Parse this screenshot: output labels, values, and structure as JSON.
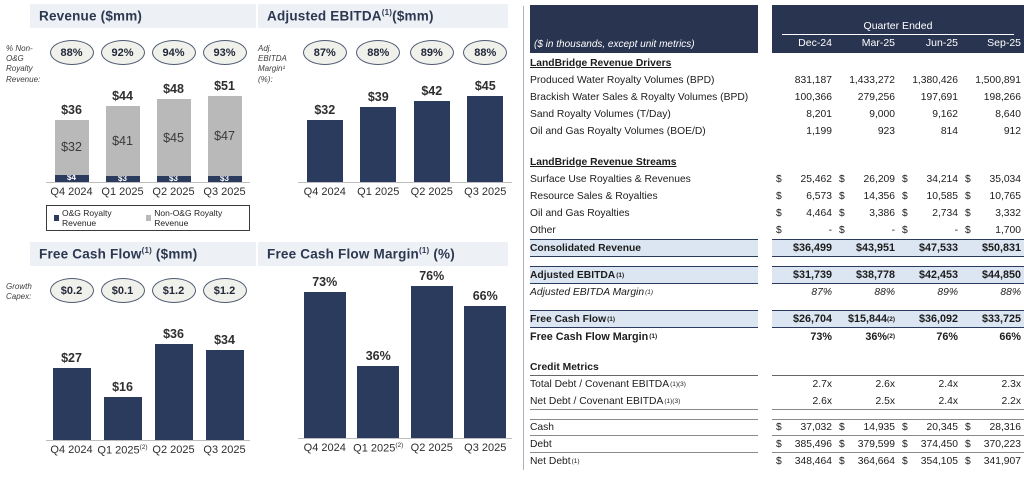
{
  "colors": {
    "navy": "#2b3b5e",
    "header_navy": "#293450",
    "bar_gray": "#b9b9b9",
    "highlight_row": "#dce6f2",
    "title_bar_bg": "#edf1f6",
    "oval_fill": "#f1f1ec"
  },
  "chart_data": [
    {
      "type": "bar",
      "stacked": true,
      "title_pre": "Revenue ",
      "title_sup": "",
      "title_post": "($mm)",
      "side_label_lines": [
        "% Non-O&G",
        "Royalty",
        "Revenue:"
      ],
      "annotation_name": "% Non-O&G Royalty Revenue",
      "annotations": [
        "88%",
        "92%",
        "94%",
        "93%"
      ],
      "categories": [
        "Q4 2024",
        "Q1 2025",
        "Q2 2025",
        "Q3 2025"
      ],
      "category_sups": [
        "",
        "",
        "",
        ""
      ],
      "series": [
        {
          "name": "O&G Royalty Revenue",
          "values": [
            4,
            3,
            3,
            3
          ],
          "labels": [
            "$4",
            "$3",
            "$3",
            "$3"
          ],
          "color": "#2b3b5e",
          "label_color": "#ffffff"
        },
        {
          "name": "Non-O&G Royalty Revenue",
          "values": [
            32,
            41,
            45,
            47
          ],
          "labels": [
            "$32",
            "$41",
            "$45",
            "$47"
          ],
          "color": "#b9b9b9",
          "label_color": "#3a3a3a"
        }
      ],
      "totals": [
        36,
        44,
        48,
        51
      ],
      "total_labels": [
        "$36",
        "$44",
        "$48",
        "$51"
      ],
      "legend": [
        {
          "label": "O&G Royalty Revenue",
          "color": "#2b3b5e"
        },
        {
          "label": "Non-O&G Royalty Revenue",
          "color": "#b9b9b9"
        }
      ]
    },
    {
      "type": "bar",
      "stacked": false,
      "title_pre": "Adjusted EBITDA",
      "title_sup": "(1)",
      "title_post": "($mm)",
      "side_label_lines": [
        "Adj.",
        "EBITDA",
        "Margin¹",
        "(%):"
      ],
      "annotation_name": "Adj. EBITDA Margin (%)",
      "annotations": [
        "87%",
        "88%",
        "89%",
        "88%"
      ],
      "categories": [
        "Q4 2024",
        "Q1 2025",
        "Q2 2025",
        "Q3 2025"
      ],
      "category_sups": [
        "",
        "",
        "",
        ""
      ],
      "values": [
        32,
        39,
        42,
        45
      ],
      "value_labels": [
        "$32",
        "$39",
        "$42",
        "$45"
      ],
      "bar_color": "#2b3b5e"
    },
    {
      "type": "bar",
      "stacked": false,
      "title_pre": "Free Cash Flow",
      "title_sup": "(1)",
      "title_post": " ($mm)",
      "side_label_lines": [
        "Growth",
        "Capex:"
      ],
      "annotation_name": "Growth Capex",
      "annotations": [
        "$0.2",
        "$0.1",
        "$1.2",
        "$1.2"
      ],
      "categories": [
        "Q4 2024",
        "Q1 2025",
        "Q2 2025",
        "Q3 2025"
      ],
      "category_sups": [
        "",
        "(2)",
        "",
        ""
      ],
      "values": [
        27,
        16,
        36,
        34
      ],
      "value_labels": [
        "$27",
        "$16",
        "$36",
        "$34"
      ],
      "bar_color": "#2b3b5e"
    },
    {
      "type": "bar",
      "stacked": false,
      "title_pre": "Free Cash Flow Margin",
      "title_sup": "(1)",
      "title_post": " (%)",
      "side_label_lines": [],
      "annotations": null,
      "categories": [
        "Q4 2024",
        "Q1 2025",
        "Q2 2025",
        "Q3 2025"
      ],
      "category_sups": [
        "",
        "(2)",
        "",
        ""
      ],
      "values": [
        73,
        36,
        76,
        66
      ],
      "value_labels": [
        "73%",
        "36%",
        "76%",
        "66%"
      ],
      "bar_color": "#2b3b5e"
    }
  ],
  "table": {
    "units_note": "($ in thousands, except unit metrics)",
    "header": {
      "group": "Quarter Ended",
      "columns": [
        "Dec-24",
        "Mar-25",
        "Jun-25",
        "Sep-25"
      ]
    },
    "rows": [
      {
        "type": "section",
        "label": "LandBridge Revenue Drivers"
      },
      {
        "type": "plain",
        "label": "Produced Water Royalty Volumes (BPD)",
        "values": [
          "831,187",
          "1,433,272",
          "1,380,426",
          "1,500,891"
        ]
      },
      {
        "type": "plain",
        "label": "Brackish Water Sales & Royalty Volumes (BPD)",
        "values": [
          "100,366",
          "279,256",
          "197,691",
          "198,266"
        ]
      },
      {
        "type": "plain",
        "label": "Sand Royalty Volumes (T/Day)",
        "values": [
          "8,201",
          "9,000",
          "9,162",
          "8,640"
        ]
      },
      {
        "type": "plain",
        "label": "Oil and Gas Royalty Volumes (BOE/D)",
        "values": [
          "1,199",
          "923",
          "814",
          "912"
        ]
      },
      {
        "type": "spacer"
      },
      {
        "type": "section",
        "label": "LandBridge Revenue Streams"
      },
      {
        "type": "dollar",
        "label": "Surface Use Royalties & Revenues",
        "values": [
          "25,462",
          "26,209",
          "34,214",
          "35,034"
        ]
      },
      {
        "type": "dollar",
        "label": "Resource Sales & Royalties",
        "values": [
          "6,573",
          "14,356",
          "10,585",
          "10,765"
        ]
      },
      {
        "type": "dollar",
        "label": "Oil and Gas Royalties",
        "values": [
          "4,464",
          "3,386",
          "2,734",
          "3,332"
        ]
      },
      {
        "type": "dollar",
        "label": "Other",
        "values": [
          "-",
          "-",
          "-",
          "1,700"
        ]
      },
      {
        "type": "total",
        "label": "Consolidated Revenue",
        "values": [
          "$36,499",
          "$43,951",
          "$47,533",
          "$50,831"
        ]
      },
      {
        "type": "spacer_sm"
      },
      {
        "type": "total",
        "label": "Adjusted EBITDA",
        "label_sup": "(1)",
        "values": [
          "$31,739",
          "$38,778",
          "$42,453",
          "$44,850"
        ]
      },
      {
        "type": "italic",
        "label": "Adjusted EBITDA Margin",
        "label_sup": "(1)",
        "values": [
          "87%",
          "88%",
          "89%",
          "88%"
        ]
      },
      {
        "type": "spacer_sm"
      },
      {
        "type": "total",
        "label": "Free Cash Flow",
        "label_sup": "(1)",
        "values": [
          "$26,704",
          "$15,844",
          "$36,092",
          "$33,725"
        ],
        "value_sups": [
          "",
          "(2)",
          "",
          ""
        ]
      },
      {
        "type": "bold",
        "label": "Free Cash Flow Margin",
        "label_sup": "(1)",
        "values": [
          "73%",
          "36%",
          "76%",
          "66%"
        ],
        "value_sups": [
          "",
          "(2)",
          "",
          ""
        ]
      },
      {
        "type": "spacer"
      },
      {
        "type": "credit_header",
        "label": "Credit Metrics"
      },
      {
        "type": "plain",
        "label": "Total Debt / Covenant EBITDA",
        "label_sup": "(1)(3)",
        "values": [
          "2.7x",
          "2.6x",
          "2.4x",
          "2.3x"
        ]
      },
      {
        "type": "plain",
        "label": "Net Debt / Covenant EBITDA",
        "label_sup": "(1)(3)",
        "values": [
          "2.6x",
          "2.5x",
          "2.4x",
          "2.2x"
        ],
        "rule_bottom": true
      },
      {
        "type": "spacer_sm"
      },
      {
        "type": "dollar",
        "label": "Cash",
        "values": [
          "37,032",
          "14,935",
          "20,345",
          "28,316"
        ],
        "rule_top": true,
        "rule_bottom": true
      },
      {
        "type": "dollar",
        "label": "Debt",
        "values": [
          "385,496",
          "379,599",
          "374,450",
          "370,223"
        ],
        "rule_bottom": true
      },
      {
        "type": "dollar",
        "label": "Net Debt",
        "label_sup": "(1)",
        "values": [
          "348,464",
          "364,664",
          "354,105",
          "341,907"
        ]
      }
    ]
  }
}
